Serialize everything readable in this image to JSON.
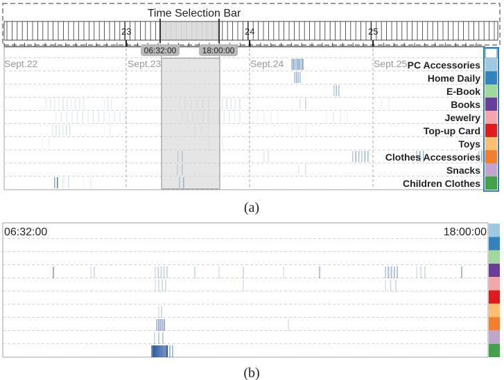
{
  "panel_a": {
    "title": "Time Selection Bar",
    "day_ticks": [
      "23",
      "24",
      "25"
    ],
    "range_start": "06:32:00",
    "range_end": "18:00:00",
    "date_labels": [
      "Sept.22",
      "Sept.23",
      "Sept.24",
      "Sept.25"
    ],
    "categories": [
      {
        "label": "PC Accessories",
        "color": "#9ecae1"
      },
      {
        "label": "Home Daily",
        "color": "#3182bd"
      },
      {
        "label": "E-Book",
        "color": "#a1d99b"
      },
      {
        "label": "Books",
        "color": "#6a3d9a"
      },
      {
        "label": "Jewelry",
        "color": "#f4a6a8"
      },
      {
        "label": "Top-up Card",
        "color": "#e31a1c"
      },
      {
        "label": "Toys",
        "color": "#fdbf6f"
      },
      {
        "label": "Clothes Accessories",
        "color": "#f47f2a"
      },
      {
        "label": "Snacks",
        "color": "#c2a5cf"
      },
      {
        "label": "Children Clothes",
        "color": "#41a346"
      }
    ],
    "caption": "(a)"
  },
  "panel_b": {
    "start_label": "06:32:00",
    "end_label": "18:00:00",
    "caption": "(b)"
  },
  "colors": {
    "selection_fill": "#dcdcdc",
    "handle_fill": "#b9b9b9",
    "grid": "#cfcfcf",
    "highlight_border": "#2f7ec1"
  }
}
